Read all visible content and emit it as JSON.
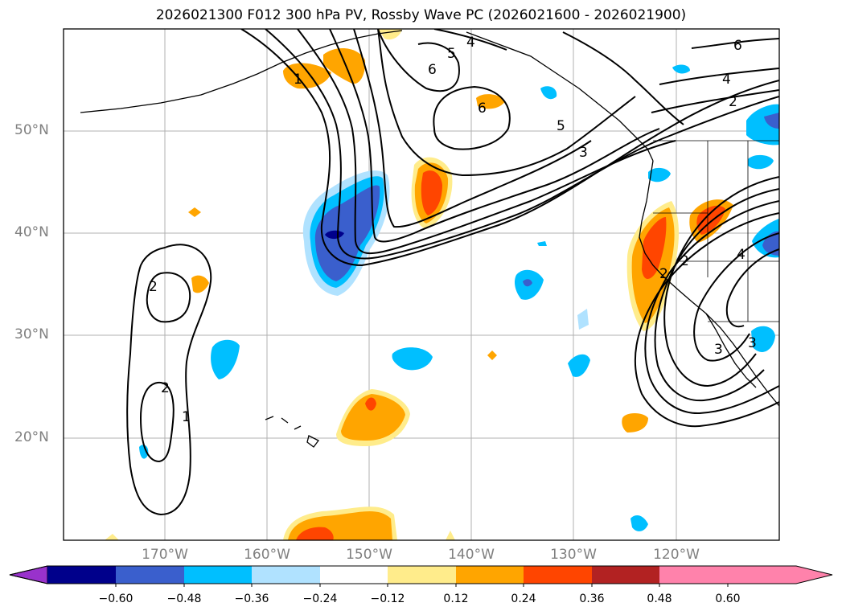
{
  "title": "2026021300 F012 300 hPa PV, Rossby Wave PC (2026021600 - 2026021900)",
  "lat_labels": [
    "50°N",
    "40°N",
    "30°N",
    "20°N"
  ],
  "lon_labels": [
    "170°W",
    "160°W",
    "150°W",
    "140°W",
    "130°W",
    "120°W"
  ],
  "colorbar": {
    "colors": [
      "#9932cc",
      "#00008b",
      "#3a5fcd",
      "#00bfff",
      "#b0e2ff",
      "#ffffff",
      "#ffec8b",
      "#ffa500",
      "#ff4500",
      "#b22222",
      "#ff82ab"
    ],
    "labels": [
      "−0.60",
      "−0.48",
      "−0.36",
      "−0.24",
      "−0.12",
      "0.12",
      "0.24",
      "0.36",
      "0.48",
      "0.60"
    ]
  },
  "contour_labels": [
    "1",
    "2",
    "3",
    "4",
    "5",
    "6",
    "6",
    "5",
    "4",
    "2",
    "3",
    "2",
    "3",
    "2",
    "1",
    "2",
    "4",
    "6"
  ],
  "colors": {
    "frame": "#000000",
    "grid": "#b0b0b0",
    "axis_text": "#808080"
  }
}
